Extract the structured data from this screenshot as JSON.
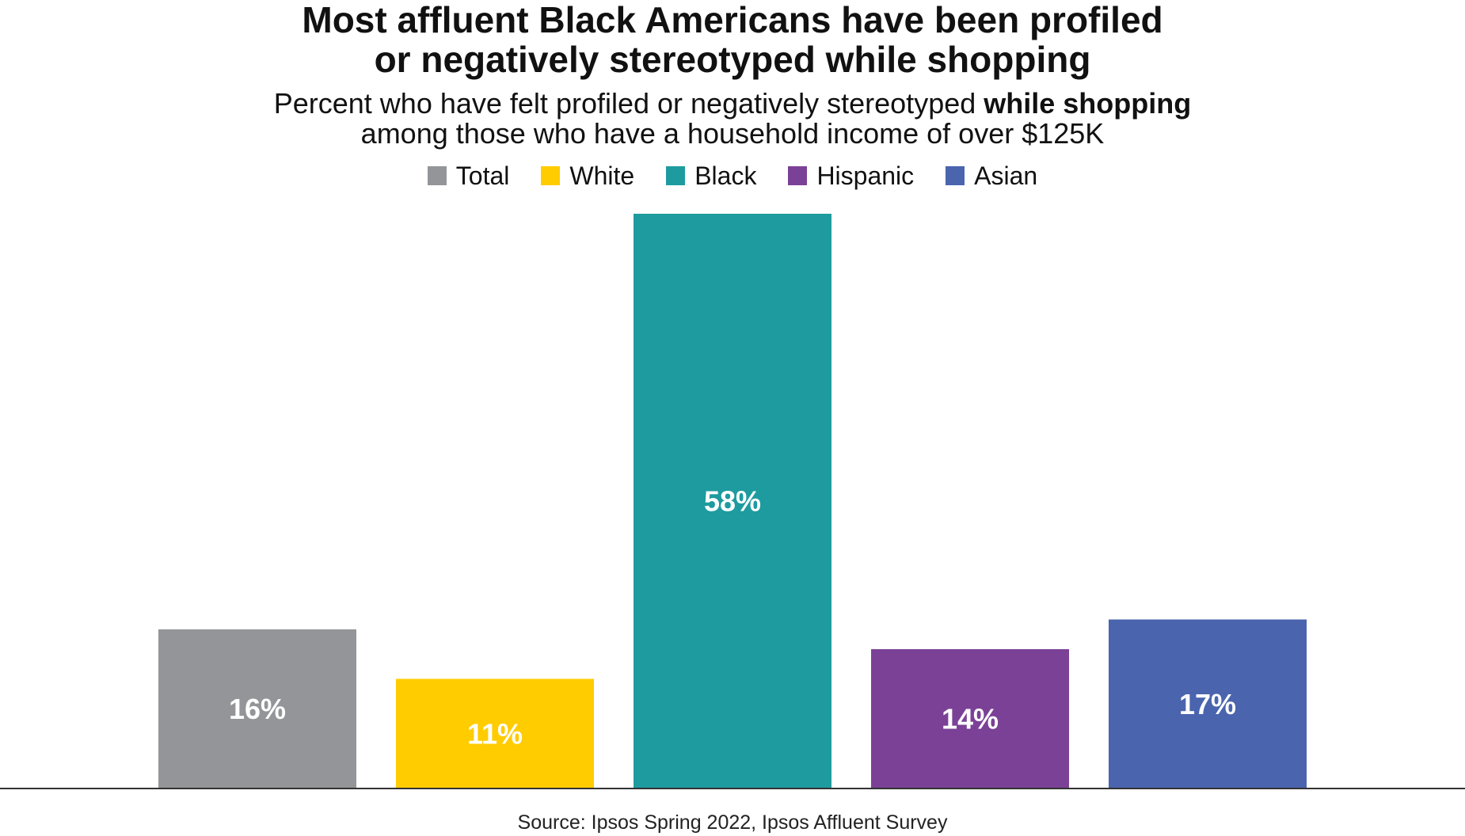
{
  "chart_data": {
    "type": "bar",
    "title_lines": [
      "Most affluent Black Americans have been profiled",
      "or negatively stereotyped while shopping"
    ],
    "subtitle_line1_regular": "Percent who have felt profiled or negatively stereotyped ",
    "subtitle_line1_bold": "while shopping",
    "subtitle_line2": "among those who have a household income of over $125K",
    "xlabel": "",
    "ylabel": "",
    "ylim": [
      0,
      58
    ],
    "grid": false,
    "legend_position": "top-center",
    "categories": [
      "Total",
      "White",
      "Black",
      "Hispanic",
      "Asian"
    ],
    "values": [
      16,
      11,
      58,
      14,
      17
    ],
    "value_labels": [
      "16%",
      "11%",
      "58%",
      "14%",
      "17%"
    ],
    "colors": [
      "#939598",
      "#FFCC00",
      "#1E9B9F",
      "#7B4196",
      "#4A64AE"
    ],
    "label_color": "#ffffff",
    "axis_color": "#333333",
    "source": "Source: Ipsos Spring 2022, Ipsos Affluent Survey"
  }
}
